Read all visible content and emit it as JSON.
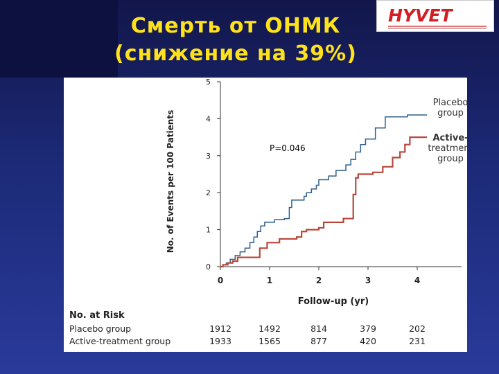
{
  "slide": {
    "title_line1": "Смерть от ОНМК",
    "title_line2": "(снижение на 39%)",
    "logo_text": "HYVET"
  },
  "colors": {
    "background": "#1c2a78",
    "title": "#ffe21a",
    "placebo": "#2f5f8a",
    "active": "#b8473a",
    "logo_red": "#d11f25"
  },
  "chart_data": {
    "type": "line",
    "step": true,
    "xlabel": "Follow-up (yr)",
    "ylabel": "No. of Events per 100 Patients",
    "xlim": [
      0,
      4.9
    ],
    "ylim": [
      0,
      5
    ],
    "x_ticks": [
      0,
      1,
      2,
      3,
      4
    ],
    "y_ticks": [
      0,
      1,
      2,
      3,
      4,
      5
    ],
    "annotation": "P=0.046",
    "series": [
      {
        "name": "Placebo group",
        "label_lines": [
          "Placebo",
          "group"
        ],
        "color": "#2f5f8a",
        "points": [
          [
            0,
            0
          ],
          [
            0.05,
            0.05
          ],
          [
            0.12,
            0.1
          ],
          [
            0.2,
            0.2
          ],
          [
            0.3,
            0.3
          ],
          [
            0.4,
            0.4
          ],
          [
            0.5,
            0.5
          ],
          [
            0.6,
            0.65
          ],
          [
            0.68,
            0.8
          ],
          [
            0.75,
            0.95
          ],
          [
            0.82,
            1.1
          ],
          [
            0.9,
            1.2
          ],
          [
            1.1,
            1.27
          ],
          [
            1.3,
            1.3
          ],
          [
            1.4,
            1.6
          ],
          [
            1.45,
            1.8
          ],
          [
            1.7,
            1.9
          ],
          [
            1.75,
            2.0
          ],
          [
            1.85,
            2.1
          ],
          [
            1.95,
            2.2
          ],
          [
            2.0,
            2.35
          ],
          [
            2.2,
            2.45
          ],
          [
            2.35,
            2.6
          ],
          [
            2.55,
            2.75
          ],
          [
            2.65,
            2.9
          ],
          [
            2.75,
            3.1
          ],
          [
            2.85,
            3.3
          ],
          [
            2.95,
            3.45
          ],
          [
            3.15,
            3.75
          ],
          [
            3.35,
            4.05
          ],
          [
            3.8,
            4.1
          ],
          [
            4.2,
            4.1
          ]
        ]
      },
      {
        "name": "Active-treatment group",
        "label_lines": [
          "Active-",
          "treatment",
          "group"
        ],
        "color": "#b8473a",
        "points": [
          [
            0,
            0
          ],
          [
            0.05,
            0.05
          ],
          [
            0.15,
            0.1
          ],
          [
            0.25,
            0.15
          ],
          [
            0.35,
            0.25
          ],
          [
            0.8,
            0.5
          ],
          [
            0.95,
            0.65
          ],
          [
            1.2,
            0.75
          ],
          [
            1.55,
            0.8
          ],
          [
            1.65,
            0.95
          ],
          [
            1.75,
            1.0
          ],
          [
            2.0,
            1.05
          ],
          [
            2.1,
            1.2
          ],
          [
            2.5,
            1.3
          ],
          [
            2.7,
            1.95
          ],
          [
            2.75,
            2.4
          ],
          [
            2.8,
            2.5
          ],
          [
            3.1,
            2.55
          ],
          [
            3.3,
            2.7
          ],
          [
            3.5,
            2.95
          ],
          [
            3.65,
            3.1
          ],
          [
            3.75,
            3.3
          ],
          [
            3.85,
            3.5
          ],
          [
            4.2,
            3.5
          ]
        ]
      }
    ],
    "risk_table": {
      "header": "No. at Risk",
      "rows": [
        {
          "label": "Placebo group",
          "values": [
            "1912",
            "1492",
            "814",
            "379",
            "202"
          ]
        },
        {
          "label": "Active-treatment group",
          "values": [
            "1933",
            "1565",
            "877",
            "420",
            "231"
          ]
        }
      ]
    }
  }
}
